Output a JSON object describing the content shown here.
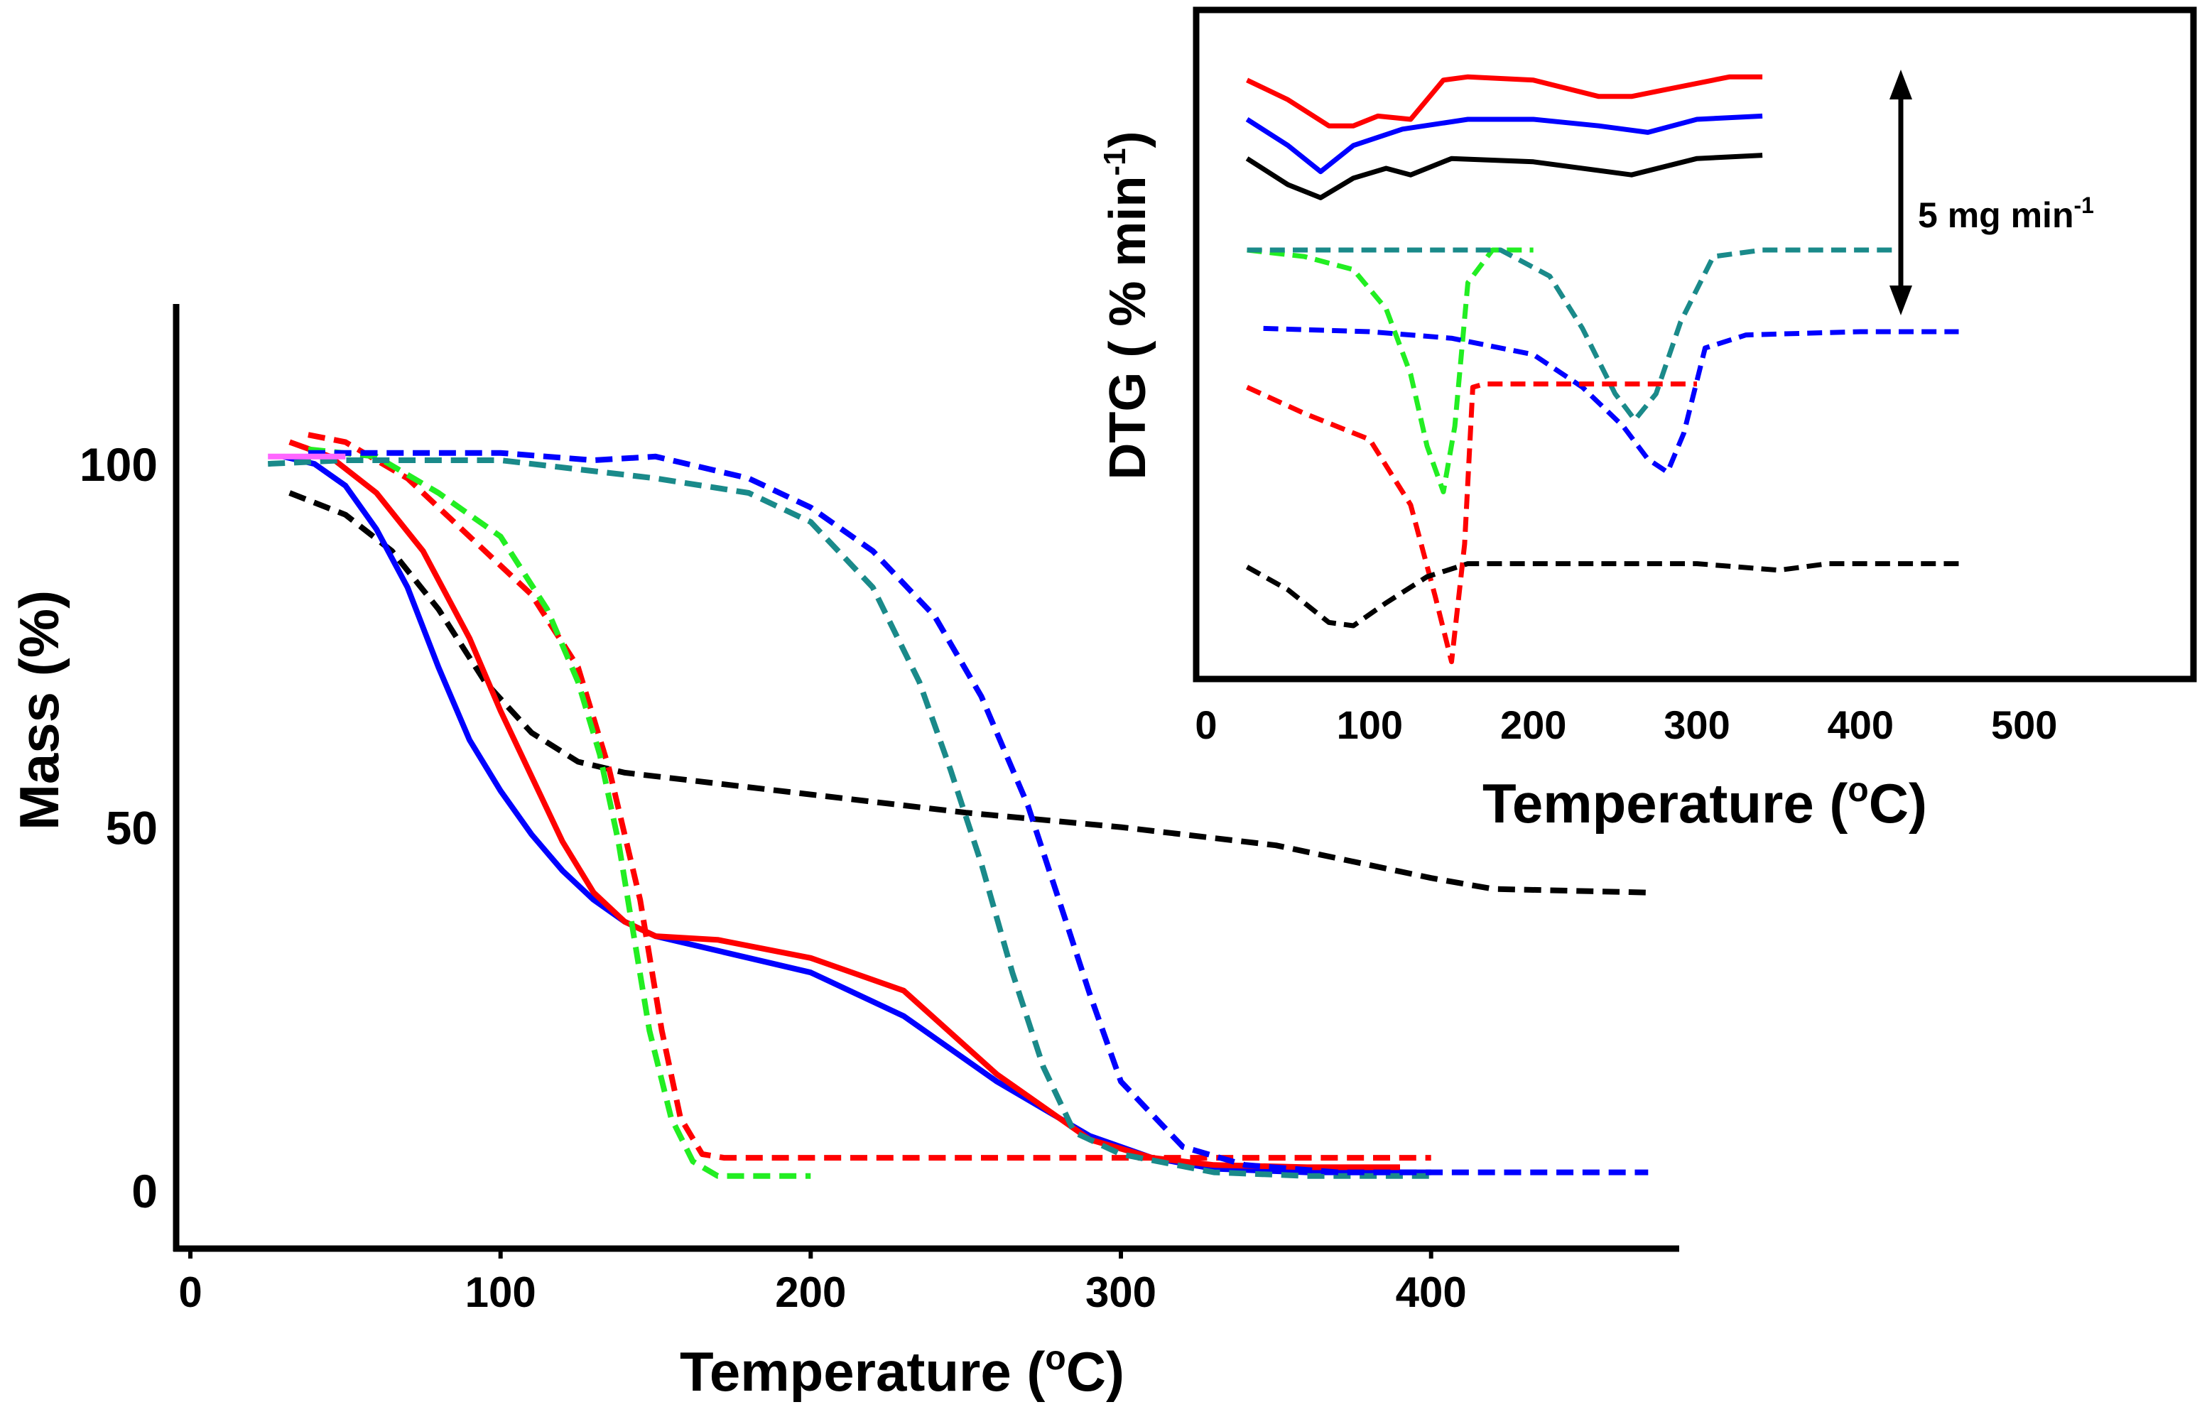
{
  "chart_data": [
    {
      "type": "line",
      "panel": "main",
      "xlabel": "Temperature (",
      "xlabel_sup": "o",
      "xlabel_end": "C)",
      "ylabel": "Mass (%)",
      "xlim": [
        0,
        480
      ],
      "ylim": [
        -8,
        122
      ],
      "xticks": [
        0,
        100,
        200,
        300,
        400
      ],
      "yticks": [
        0,
        50,
        100
      ],
      "series": [
        {
          "name": "black-dashed",
          "color": "#000000",
          "style": "dashed",
          "x": [
            32,
            50,
            65,
            80,
            95,
            110,
            125,
            140,
            160,
            200,
            250,
            300,
            350,
            400,
            420,
            470
          ],
          "y": [
            96,
            93,
            88,
            80,
            70,
            63,
            59,
            57.5,
            56.5,
            54.5,
            52,
            50,
            47.5,
            43,
            41.5,
            41
          ]
        },
        {
          "name": "blue-solid",
          "color": "#0000ff",
          "style": "solid",
          "x": [
            30,
            40,
            50,
            60,
            70,
            80,
            90,
            100,
            110,
            120,
            130,
            140,
            150,
            170,
            200,
            230,
            260,
            290,
            310,
            330,
            360,
            400
          ],
          "y": [
            101,
            100,
            97,
            91,
            83,
            72,
            62,
            55,
            49,
            44,
            40,
            37,
            35,
            33,
            30,
            24,
            15,
            7.5,
            4.5,
            3,
            2.5,
            2.5
          ]
        },
        {
          "name": "red-solid",
          "color": "#ff0000",
          "style": "solid",
          "x": [
            32,
            45,
            60,
            75,
            90,
            100,
            110,
            120,
            130,
            140,
            150,
            170,
            200,
            220,
            230,
            260,
            290,
            310,
            330,
            360,
            390
          ],
          "y": [
            103,
            101,
            96,
            88,
            76,
            66,
            57,
            48,
            41,
            37,
            35,
            34.5,
            32,
            29,
            27.5,
            16,
            7,
            4.5,
            3.5,
            3.2,
            3.2
          ]
        },
        {
          "name": "red-dashed",
          "color": "#ff0000",
          "style": "dashed",
          "x": [
            38,
            50,
            70,
            90,
            110,
            125,
            135,
            145,
            152,
            158,
            165,
            172,
            200,
            300,
            400
          ],
          "y": [
            104,
            103,
            98,
            90,
            82,
            72,
            58,
            40,
            22,
            10,
            5,
            4.5,
            4.5,
            4.5,
            4.5
          ]
        },
        {
          "name": "green-dashed",
          "color": "#22ee22",
          "style": "dashed",
          "x": [
            38,
            60,
            80,
            100,
            115,
            125,
            132,
            138,
            143,
            148,
            155,
            162,
            170,
            185,
            200
          ],
          "y": [
            102,
            101,
            96,
            90,
            80,
            70,
            60,
            48,
            35,
            22,
            10,
            4,
            2,
            2,
            2
          ]
        },
        {
          "name": "teal-dashed",
          "color": "#1a8a8a",
          "style": "dashed",
          "x": [
            25,
            50,
            100,
            150,
            180,
            200,
            220,
            235,
            245,
            255,
            265,
            275,
            285,
            300,
            330,
            360,
            400
          ],
          "y": [
            100,
            100.5,
            100.5,
            98,
            96,
            92,
            83,
            70,
            58,
            45,
            30,
            17,
            8,
            5,
            2.5,
            2,
            2
          ]
        },
        {
          "name": "blue-dashed",
          "color": "#0000ff",
          "style": "dashed",
          "x": [
            38,
            70,
            100,
            130,
            150,
            180,
            200,
            220,
            240,
            255,
            270,
            280,
            290,
            300,
            320,
            340,
            370,
            400,
            430,
            470
          ],
          "y": [
            101.5,
            101.5,
            101.5,
            100.5,
            101,
            98,
            94,
            88,
            79,
            68,
            53,
            40,
            27,
            15,
            6,
            3.5,
            2.5,
            2.5,
            2.5,
            2.5
          ]
        },
        {
          "name": "magenta-solid",
          "color": "#ff66ff",
          "style": "solid",
          "x": [
            25,
            50
          ],
          "y": [
            101,
            101
          ]
        }
      ]
    },
    {
      "type": "line",
      "panel": "inset",
      "xlabel": "Temperature (",
      "xlabel_sup": "o",
      "xlabel_end": "C)",
      "ylabel": "DTG ( % min",
      "ylabel_sup": "-1",
      "ylabel_end": ")",
      "xlim": [
        0,
        600
      ],
      "ylim": [
        0,
        100
      ],
      "xticks": [
        0,
        100,
        200,
        300,
        400,
        500
      ],
      "scale_bar_label": "5 mg min",
      "scale_bar_sup": "-1",
      "series": [
        {
          "name": "red-solid",
          "color": "#ff0000",
          "style": "solid",
          "x": [
            25,
            50,
            75,
            90,
            105,
            125,
            135,
            145,
            160,
            200,
            240,
            260,
            280,
            320,
            340
          ],
          "y": [
            91,
            88,
            84,
            84,
            85.5,
            85,
            88,
            91,
            91.5,
            91,
            88.5,
            88.5,
            89.5,
            91.5,
            91.5
          ]
        },
        {
          "name": "blue-solid",
          "color": "#0000ff",
          "style": "solid",
          "x": [
            25,
            50,
            70,
            90,
            120,
            160,
            200,
            240,
            270,
            300,
            340
          ],
          "y": [
            85,
            81,
            77,
            81,
            83.5,
            85,
            85,
            84,
            83,
            85,
            85.5
          ]
        },
        {
          "name": "black-solid",
          "color": "#000000",
          "style": "solid",
          "x": [
            25,
            50,
            70,
            90,
            110,
            125,
            150,
            200,
            260,
            300,
            340
          ],
          "y": [
            79,
            75,
            73,
            76,
            77.5,
            76.5,
            79,
            78.5,
            76.5,
            79,
            79.5
          ]
        },
        {
          "name": "green-dashed",
          "color": "#22ee22",
          "style": "dashed",
          "x": [
            25,
            60,
            90,
            110,
            125,
            135,
            145,
            152,
            160,
            175,
            200
          ],
          "y": [
            65,
            64,
            62,
            56,
            46,
            35,
            28,
            38,
            60,
            65,
            65
          ]
        },
        {
          "name": "teal-dashed",
          "color": "#1a8a8a",
          "style": "dashed",
          "x": [
            25,
            100,
            180,
            210,
            230,
            250,
            262,
            275,
            290,
            310,
            340,
            400,
            420
          ],
          "y": [
            65,
            65,
            65,
            61,
            53,
            43,
            39,
            43,
            54,
            64,
            65,
            65,
            65
          ]
        },
        {
          "name": "blue-dashed",
          "color": "#0000ff",
          "style": "dashed",
          "x": [
            35,
            100,
            150,
            200,
            230,
            255,
            270,
            282,
            292,
            305,
            330,
            400,
            460
          ],
          "y": [
            53,
            52.5,
            51.5,
            49,
            44,
            38,
            33,
            31,
            37,
            50,
            52,
            52.5,
            52.5
          ]
        },
        {
          "name": "red-dashed",
          "color": "#ff0000",
          "style": "dashed",
          "x": [
            25,
            60,
            100,
            125,
            140,
            150,
            158,
            163,
            170,
            250,
            300
          ],
          "y": [
            44,
            40,
            36,
            26,
            12,
            2,
            20,
            44,
            44.5,
            44.5,
            44.5
          ]
        },
        {
          "name": "black-dashed",
          "color": "#000000",
          "style": "dashed",
          "x": [
            25,
            50,
            75,
            90,
            110,
            135,
            160,
            200,
            300,
            350,
            380,
            460
          ],
          "y": [
            16.5,
            13,
            8,
            7.5,
            11,
            15,
            17,
            17,
            17,
            16,
            17,
            17
          ]
        }
      ]
    }
  ]
}
